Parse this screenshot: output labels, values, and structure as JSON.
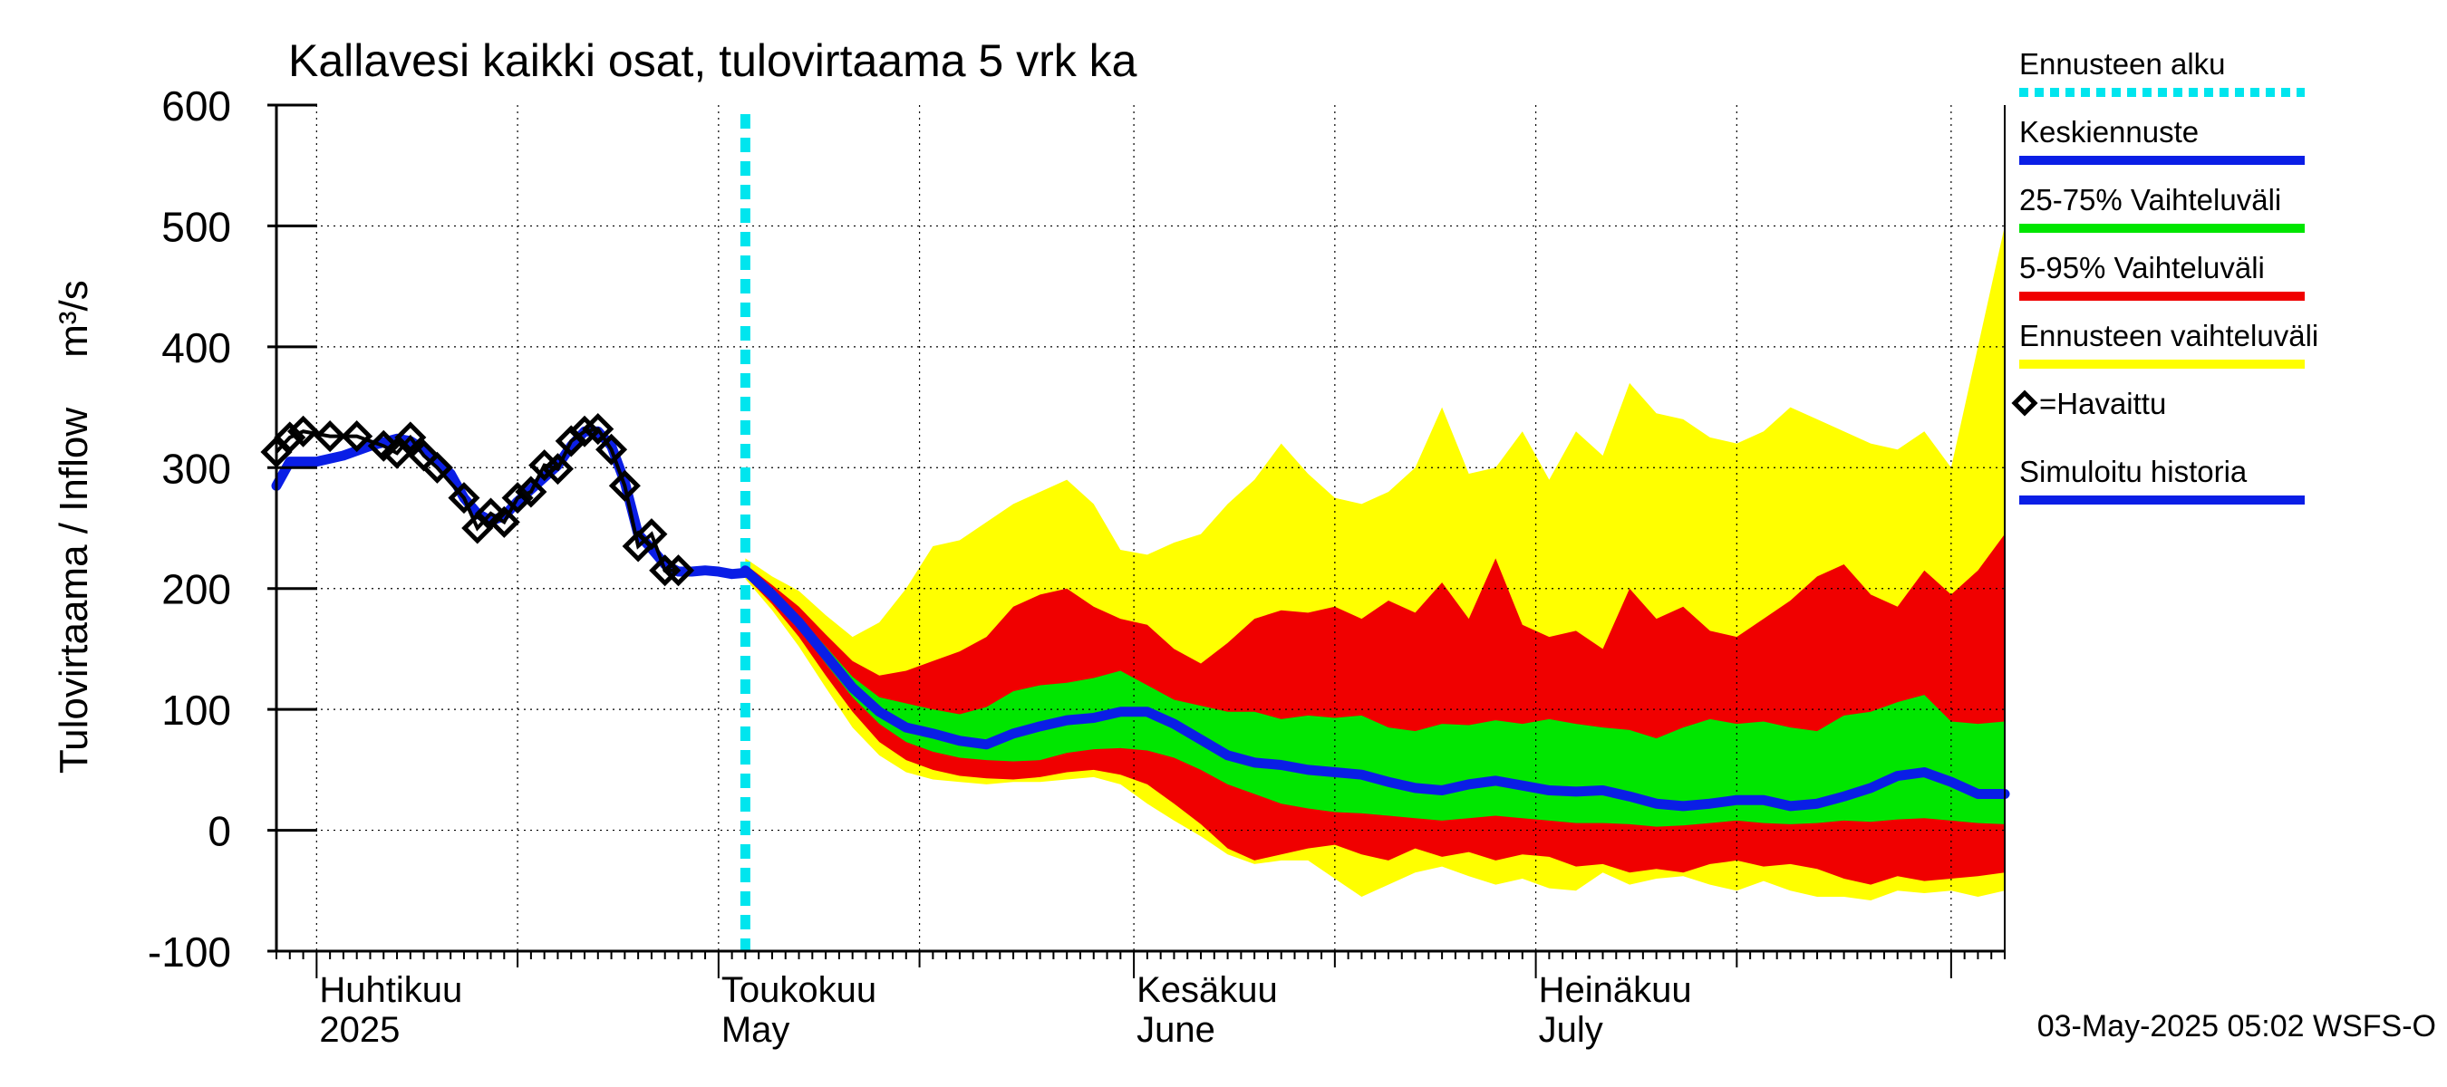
{
  "chart_data": {
    "type": "area",
    "title": "Kallavesi kaikki osat, tulovirtaama  5 vrk ka",
    "ylabel": "Tulovirtaama / Inflow",
    "yunit": "m³/s",
    "ylim": [
      -100,
      600
    ],
    "yticks": [
      -100,
      0,
      100,
      200,
      300,
      400,
      500,
      600
    ],
    "xlim": [
      "2025-03-29",
      "2025-08-05"
    ],
    "grid": true,
    "forecast_start": "2025-05-03",
    "month_labels": [
      {
        "date": "2025-04-01",
        "fi": "Huhtikuu",
        "en": "2025"
      },
      {
        "date": "2025-05-01",
        "fi": "Toukokuu",
        "en": "May"
      },
      {
        "date": "2025-06-01",
        "fi": "Kesäkuu",
        "en": "June"
      },
      {
        "date": "2025-07-01",
        "fi": "Heinäkuu",
        "en": "July"
      }
    ],
    "legend": [
      {
        "label": "Ennusteen alku",
        "color": "#00e5ee",
        "style": "dotted"
      },
      {
        "label": "Keskiennuste",
        "color": "#0a1ee6",
        "style": "line"
      },
      {
        "label": "25-75% Vaihteluväli",
        "color": "#00e600",
        "style": "line"
      },
      {
        "label": "5-95% Vaihteluväli",
        "color": "#f00000",
        "style": "line"
      },
      {
        "label": "Ennusteen vaihteluväli",
        "color": "#ffff00",
        "style": "line"
      },
      {
        "label": "=Havaittu",
        "color": "#000000",
        "style": "marker"
      },
      {
        "label": "Simuloitu historia",
        "color": "#0a1ee6",
        "style": "line"
      }
    ],
    "footer": "03-May-2025 05:02 WSFS-O",
    "observed": {
      "x": [
        "2025-03-29",
        "2025-03-30",
        "2025-03-31",
        "2025-04-02",
        "2025-04-04",
        "2025-04-06",
        "2025-04-07",
        "2025-04-08",
        "2025-04-09",
        "2025-04-10",
        "2025-04-12",
        "2025-04-13",
        "2025-04-14",
        "2025-04-15",
        "2025-04-16",
        "2025-04-17",
        "2025-04-18",
        "2025-04-19",
        "2025-04-20",
        "2025-04-21",
        "2025-04-22",
        "2025-04-23",
        "2025-04-24",
        "2025-04-25",
        "2025-04-26",
        "2025-04-27",
        "2025-04-28"
      ],
      "y": [
        313,
        325,
        330,
        326,
        326,
        318,
        312,
        325,
        310,
        300,
        275,
        250,
        262,
        255,
        275,
        280,
        302,
        299,
        322,
        330,
        332,
        315,
        285,
        235,
        245,
        215,
        215
      ]
    },
    "simulated_history": {
      "x": [
        "2025-03-29",
        "2025-03-30",
        "2025-04-01",
        "2025-04-03",
        "2025-04-05",
        "2025-04-07",
        "2025-04-08",
        "2025-04-09",
        "2025-04-10",
        "2025-04-11",
        "2025-04-12",
        "2025-04-13",
        "2025-04-14",
        "2025-04-15",
        "2025-04-16",
        "2025-04-17",
        "2025-04-18",
        "2025-04-19",
        "2025-04-20",
        "2025-04-21",
        "2025-04-22",
        "2025-04-23",
        "2025-04-24",
        "2025-04-25",
        "2025-04-26",
        "2025-04-27",
        "2025-04-28",
        "2025-04-29",
        "2025-04-30",
        "2025-05-01",
        "2025-05-02",
        "2025-05-03"
      ],
      "y": [
        285,
        305,
        305,
        310,
        318,
        324,
        322,
        315,
        305,
        295,
        275,
        262,
        256,
        260,
        272,
        282,
        292,
        302,
        318,
        330,
        330,
        318,
        288,
        245,
        233,
        220,
        214,
        214,
        215,
        214,
        212,
        213
      ]
    },
    "forecast_x": [
      "2025-05-03",
      "2025-05-05",
      "2025-05-07",
      "2025-05-09",
      "2025-05-11",
      "2025-05-13",
      "2025-05-15",
      "2025-05-17",
      "2025-05-19",
      "2025-05-21",
      "2025-05-23",
      "2025-05-25",
      "2025-05-27",
      "2025-05-29",
      "2025-05-31",
      "2025-06-02",
      "2025-06-04",
      "2025-06-06",
      "2025-06-08",
      "2025-06-10",
      "2025-06-12",
      "2025-06-14",
      "2025-06-16",
      "2025-06-18",
      "2025-06-20",
      "2025-06-22",
      "2025-06-24",
      "2025-06-26",
      "2025-06-28",
      "2025-06-30",
      "2025-07-02",
      "2025-07-04",
      "2025-07-06",
      "2025-07-08",
      "2025-07-10",
      "2025-07-12",
      "2025-07-14",
      "2025-07-16",
      "2025-07-18",
      "2025-07-20",
      "2025-07-22",
      "2025-07-24",
      "2025-07-26",
      "2025-07-28",
      "2025-07-30",
      "2025-08-01",
      "2025-08-03",
      "2025-08-05"
    ],
    "series": [
      {
        "name": "Keskiennuste",
        "values": [
          215,
          195,
          172,
          145,
          118,
          98,
          85,
          80,
          74,
          71,
          80,
          86,
          91,
          93,
          98,
          98,
          88,
          75,
          62,
          56,
          54,
          50,
          48,
          46,
          40,
          35,
          33,
          38,
          41,
          37,
          33,
          32,
          33,
          28,
          22,
          20,
          22,
          25,
          25,
          20,
          22,
          28,
          35,
          45,
          48,
          40,
          30,
          30
        ]
      },
      {
        "name": "25-75% max",
        "values": [
          217,
          198,
          177,
          152,
          127,
          110,
          105,
          100,
          96,
          102,
          115,
          120,
          122,
          126,
          132,
          120,
          108,
          103,
          98,
          98,
          92,
          95,
          93,
          95,
          85,
          82,
          88,
          87,
          91,
          88,
          92,
          88,
          85,
          83,
          76,
          85,
          92,
          88,
          90,
          85,
          82,
          95,
          98,
          106,
          112,
          90,
          88,
          90
        ]
      },
      {
        "name": "25-75% min",
        "values": [
          212,
          192,
          168,
          138,
          110,
          88,
          73,
          65,
          60,
          58,
          57,
          58,
          64,
          67,
          68,
          66,
          60,
          50,
          38,
          30,
          22,
          18,
          15,
          14,
          12,
          10,
          8,
          10,
          12,
          10,
          8,
          6,
          6,
          5,
          3,
          4,
          6,
          8,
          6,
          5,
          6,
          8,
          7,
          9,
          10,
          8,
          6,
          5
        ]
      },
      {
        "name": "5-95% max",
        "values": [
          220,
          203,
          185,
          162,
          140,
          128,
          132,
          140,
          148,
          160,
          185,
          195,
          200,
          185,
          175,
          170,
          150,
          138,
          155,
          175,
          182,
          180,
          185,
          175,
          190,
          180,
          205,
          175,
          225,
          170,
          160,
          165,
          150,
          200,
          175,
          185,
          165,
          160,
          175,
          190,
          210,
          220,
          195,
          185,
          215,
          195,
          215,
          245
        ]
      },
      {
        "name": "5-95% min",
        "values": [
          210,
          187,
          160,
          128,
          98,
          73,
          58,
          50,
          45,
          43,
          42,
          44,
          48,
          50,
          46,
          38,
          22,
          5,
          -15,
          -25,
          -20,
          -15,
          -12,
          -20,
          -25,
          -15,
          -22,
          -18,
          -25,
          -20,
          -22,
          -30,
          -28,
          -35,
          -32,
          -35,
          -28,
          -25,
          -30,
          -28,
          -32,
          -40,
          -45,
          -38,
          -42,
          -40,
          -38,
          -35
        ]
      },
      {
        "name": "Ennusteen max",
        "values": [
          225,
          210,
          198,
          178,
          160,
          172,
          200,
          235,
          240,
          255,
          270,
          280,
          290,
          270,
          232,
          228,
          238,
          245,
          270,
          290,
          320,
          295,
          275,
          270,
          280,
          300,
          350,
          295,
          300,
          330,
          290,
          330,
          310,
          370,
          345,
          340,
          325,
          320,
          330,
          350,
          340,
          330,
          320,
          315,
          330,
          300,
          400,
          500
        ]
      },
      {
        "name": "Ennusteen min",
        "values": [
          208,
          182,
          152,
          118,
          85,
          62,
          48,
          42,
          40,
          38,
          40,
          40,
          42,
          44,
          38,
          22,
          8,
          -5,
          -20,
          -28,
          -25,
          -25,
          -40,
          -55,
          -45,
          -35,
          -30,
          -38,
          -45,
          -40,
          -48,
          -50,
          -35,
          -45,
          -40,
          -38,
          -45,
          -50,
          -42,
          -50,
          -55,
          -55,
          -58,
          -50,
          -52,
          -50,
          -55,
          -50
        ]
      }
    ]
  }
}
